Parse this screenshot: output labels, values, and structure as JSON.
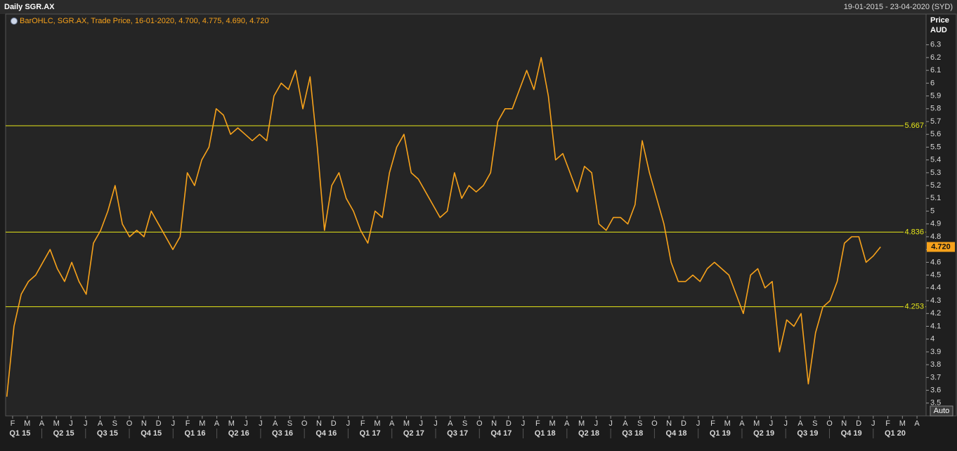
{
  "chart_data": {
    "type": "line",
    "title": "Daily SGR.AX",
    "date_range": "19-01-2015 - 23-04-2020 (SYD)",
    "legend_text": "BarOHLC, SGR.AX, Trade Price, 16-01-2020, 4.700, 4.775, 4.690, 4.720",
    "y_axis_label": [
      "Price",
      "AUD"
    ],
    "scale_button": "Auto",
    "ylim": [
      3.4,
      6.54
    ],
    "yticks": [
      3.5,
      3.6,
      3.7,
      3.8,
      3.9,
      4,
      4.1,
      4.2,
      4.3,
      4.4,
      4.5,
      4.6,
      4.7,
      4.8,
      4.9,
      5,
      5.1,
      5.2,
      5.3,
      5.4,
      5.5,
      5.6,
      5.7,
      5.8,
      5.9,
      6,
      6.1,
      6.2,
      6.3
    ],
    "month_labels": [
      "F",
      "M",
      "A",
      "M",
      "J",
      "J",
      "A",
      "S",
      "O",
      "N",
      "D",
      "J",
      "F",
      "M",
      "A",
      "M",
      "J",
      "J",
      "A",
      "S",
      "O",
      "N",
      "D",
      "J",
      "F",
      "M",
      "A",
      "M",
      "J",
      "J",
      "A",
      "S",
      "O",
      "N",
      "D",
      "J",
      "F",
      "M",
      "A",
      "M",
      "J",
      "J",
      "A",
      "S",
      "O",
      "N",
      "D",
      "J",
      "F",
      "M",
      "A",
      "M",
      "J",
      "J",
      "A",
      "S",
      "O",
      "N",
      "D",
      "J",
      "F",
      "M",
      "A"
    ],
    "quarter_labels": [
      "Q1 15",
      "Q2 15",
      "Q3 15",
      "Q4 15",
      "Q1 16",
      "Q2 16",
      "Q3 16",
      "Q4 16",
      "Q1 17",
      "Q2 17",
      "Q3 17",
      "Q4 17",
      "Q1 18",
      "Q2 18",
      "Q3 18",
      "Q4 18",
      "Q1 19",
      "Q2 19",
      "Q3 19",
      "Q4 19",
      "Q1 20"
    ],
    "series": [
      {
        "color": "#f7a21b",
        "values": [
          3.55,
          4.1,
          4.35,
          4.45,
          4.5,
          4.6,
          4.7,
          4.55,
          4.45,
          4.6,
          4.45,
          4.35,
          4.75,
          4.85,
          5.0,
          5.2,
          4.9,
          4.8,
          4.85,
          4.8,
          5.0,
          4.9,
          4.8,
          4.7,
          4.8,
          5.3,
          5.2,
          5.4,
          5.5,
          5.8,
          5.75,
          5.6,
          5.65,
          5.6,
          5.55,
          5.6,
          5.55,
          5.9,
          6.0,
          5.95,
          6.1,
          5.8,
          6.05,
          5.5,
          4.85,
          5.2,
          5.3,
          5.1,
          5.0,
          4.85,
          4.75,
          5.0,
          4.95,
          5.3,
          5.5,
          5.6,
          5.3,
          5.25,
          5.15,
          5.05,
          4.95,
          5.0,
          5.3,
          5.1,
          5.2,
          5.15,
          5.2,
          5.3,
          5.7,
          5.8,
          5.8,
          5.95,
          6.1,
          5.95,
          6.2,
          5.9,
          5.4,
          5.45,
          5.3,
          5.15,
          5.35,
          5.3,
          4.9,
          4.85,
          4.95,
          4.95,
          4.9,
          5.05,
          5.55,
          5.3,
          5.1,
          4.9,
          4.6,
          4.45,
          4.45,
          4.5,
          4.45,
          4.55,
          4.6,
          4.55,
          4.5,
          4.35,
          4.2,
          4.5,
          4.55,
          4.4,
          4.45,
          3.9,
          4.15,
          4.1,
          4.2,
          3.65,
          4.05,
          4.25,
          4.3,
          4.45,
          4.75,
          4.8,
          4.8,
          4.6,
          4.65,
          4.72
        ]
      }
    ],
    "reference_lines": [
      5.667,
      4.836,
      4.253
    ],
    "reference_color": "#e6e619",
    "last_price": {
      "value": 4.72,
      "label": "4.720"
    }
  }
}
